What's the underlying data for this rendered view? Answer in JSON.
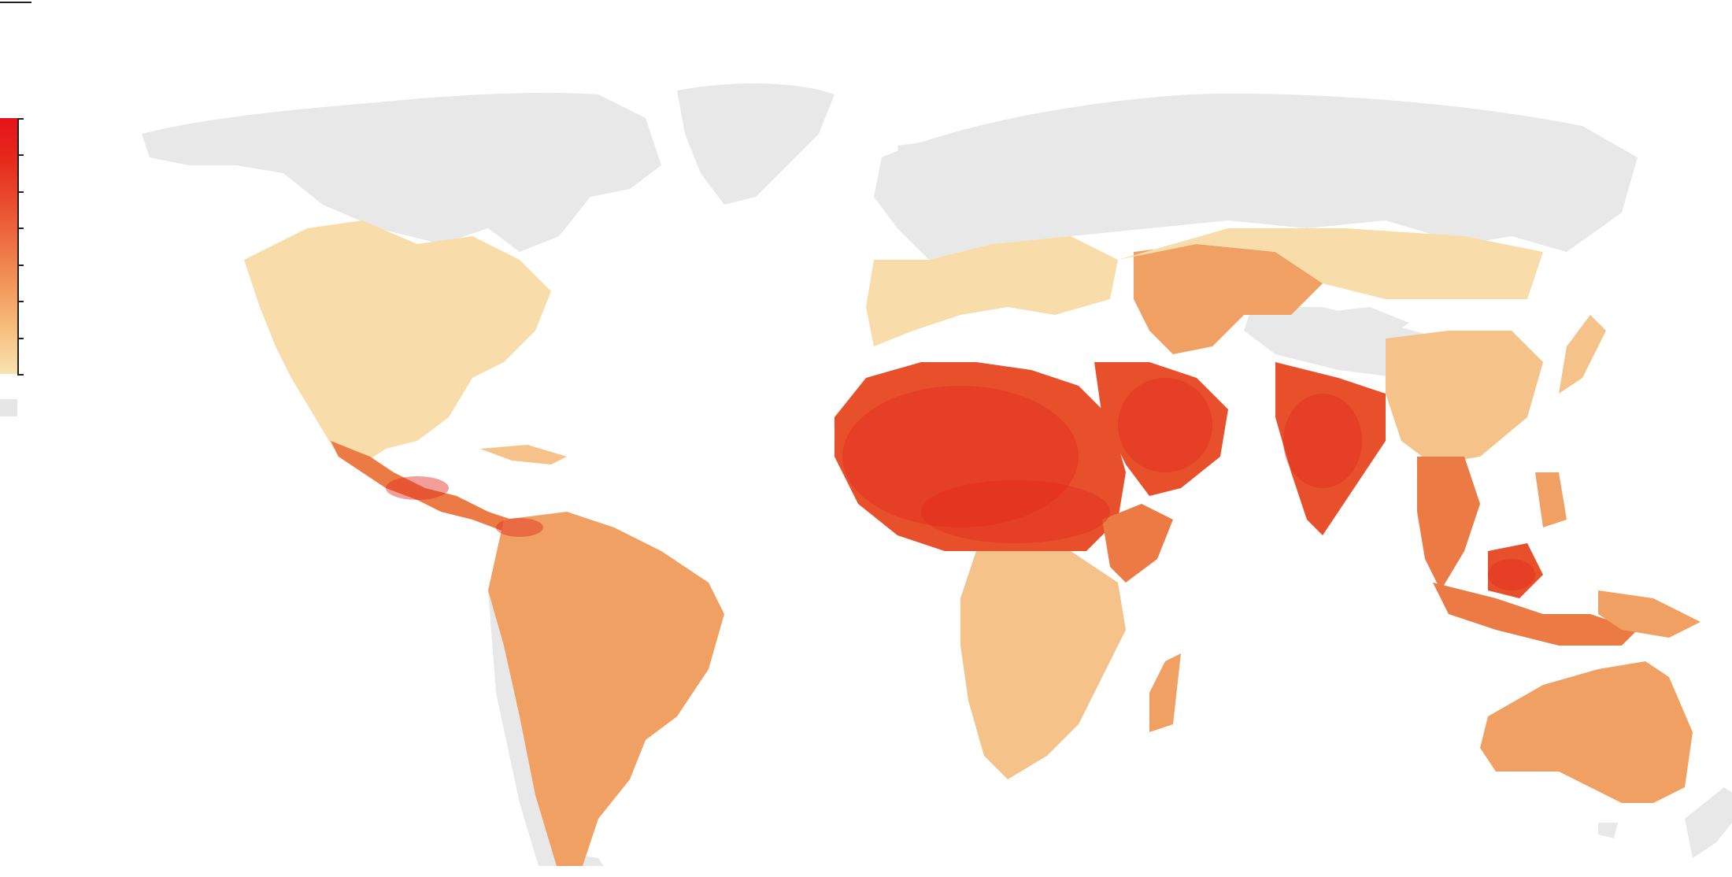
{
  "legend": {
    "gradient_colors": [
      "#f9e3b1",
      "#f6c07f",
      "#f29a5c",
      "#ee7345",
      "#ea4d2e",
      "#e62a1c",
      "#e5131a"
    ],
    "tick_count": 8,
    "nodata_color": "#e6e6e6"
  },
  "map": {
    "ocean_color": "#ffffff",
    "nodata_land_color": "#e8e8e8",
    "palette": {
      "very_low": "#f8dcaa",
      "low": "#f5c289",
      "mid": "#f0a063",
      "high": "#ec7a45",
      "very_high": "#e8502c",
      "extreme": "#e32a1c"
    }
  }
}
